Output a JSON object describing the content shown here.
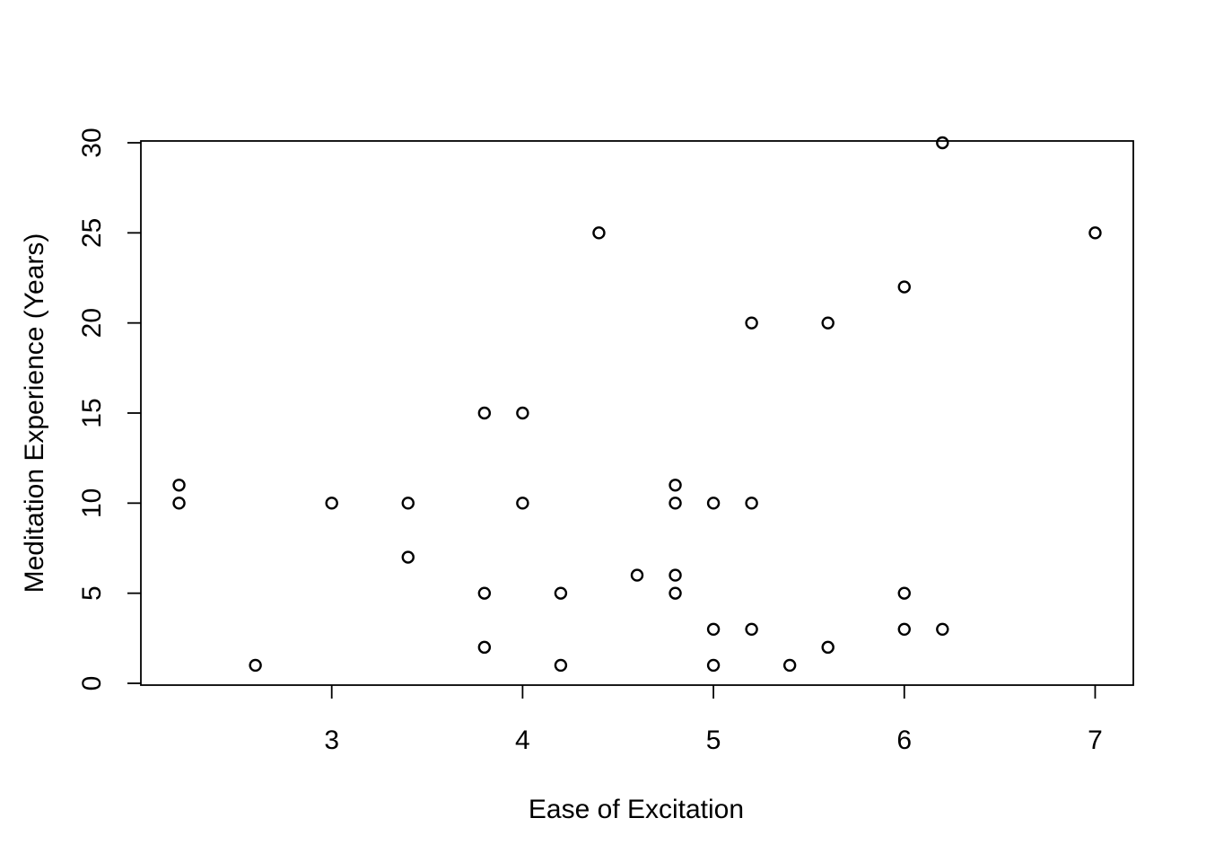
{
  "chart_data": {
    "type": "scatter",
    "title": "",
    "xlabel": "Ease of Excitation",
    "ylabel": "Meditation Experience (Years)",
    "xlim": [
      2.0,
      7.2
    ],
    "ylim": [
      -0.1,
      30.1
    ],
    "x_ticks": [
      3,
      4,
      5,
      6,
      7
    ],
    "y_ticks": [
      0,
      5,
      10,
      15,
      20,
      25,
      30
    ],
    "x_tick_labels": [
      "3",
      "4",
      "5",
      "6",
      "7"
    ],
    "y_tick_labels": [
      "0",
      "5",
      "10",
      "15",
      "20",
      "25",
      "30"
    ],
    "grid": false,
    "legend": "none",
    "point_color": "#000000",
    "points": [
      {
        "x": 2.2,
        "y": 11
      },
      {
        "x": 2.2,
        "y": 10
      },
      {
        "x": 2.6,
        "y": 1
      },
      {
        "x": 3.0,
        "y": 10
      },
      {
        "x": 3.4,
        "y": 10
      },
      {
        "x": 3.4,
        "y": 7
      },
      {
        "x": 3.8,
        "y": 15
      },
      {
        "x": 3.8,
        "y": 5
      },
      {
        "x": 3.8,
        "y": 2
      },
      {
        "x": 4.0,
        "y": 15
      },
      {
        "x": 4.0,
        "y": 10
      },
      {
        "x": 4.2,
        "y": 5
      },
      {
        "x": 4.2,
        "y": 1
      },
      {
        "x": 4.4,
        "y": 25
      },
      {
        "x": 4.6,
        "y": 6
      },
      {
        "x": 4.8,
        "y": 11
      },
      {
        "x": 4.8,
        "y": 10
      },
      {
        "x": 4.8,
        "y": 6
      },
      {
        "x": 4.8,
        "y": 5
      },
      {
        "x": 5.0,
        "y": 10
      },
      {
        "x": 5.0,
        "y": 3
      },
      {
        "x": 5.0,
        "y": 1
      },
      {
        "x": 5.2,
        "y": 20
      },
      {
        "x": 5.2,
        "y": 10
      },
      {
        "x": 5.2,
        "y": 3
      },
      {
        "x": 5.4,
        "y": 1
      },
      {
        "x": 5.6,
        "y": 20
      },
      {
        "x": 5.6,
        "y": 2
      },
      {
        "x": 6.0,
        "y": 22
      },
      {
        "x": 6.0,
        "y": 5
      },
      {
        "x": 6.0,
        "y": 3
      },
      {
        "x": 6.2,
        "y": 30
      },
      {
        "x": 6.2,
        "y": 3
      },
      {
        "x": 7.0,
        "y": 25
      }
    ]
  }
}
